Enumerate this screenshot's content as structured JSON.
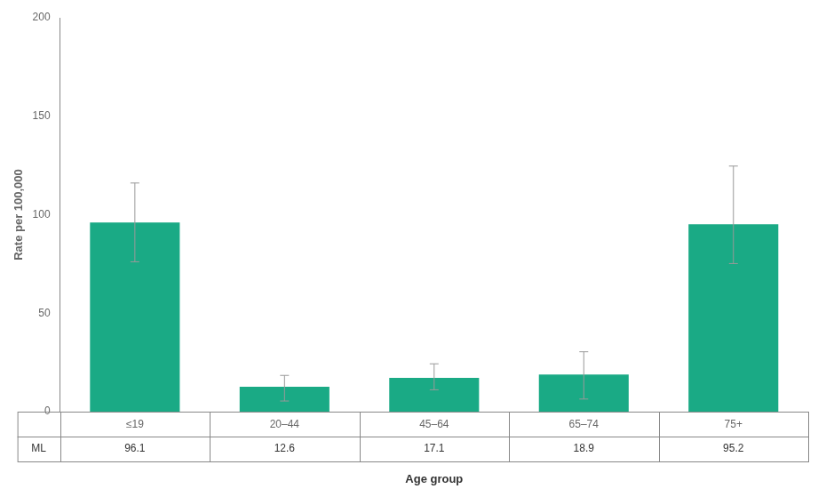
{
  "chart_data": {
    "type": "bar",
    "categories": [
      "≤19",
      "20–44",
      "45–64",
      "65–74",
      "75+"
    ],
    "values": [
      96.1,
      12.6,
      17.1,
      18.9,
      95.2
    ],
    "yerr_upper": [
      20.0,
      5.8,
      7.2,
      11.5,
      29.5
    ],
    "yerr_lower": [
      20.0,
      7.2,
      6.0,
      12.5,
      20.0
    ],
    "color": "#1aaa85",
    "ylabel": "Rate per 100,000",
    "xlabel": "Age group",
    "ylim": [
      0,
      200
    ],
    "yticks": [
      0,
      50,
      100,
      150,
      200
    ],
    "grid": false,
    "table": {
      "label": "ML",
      "values": [
        96.1,
        12.6,
        17.1,
        18.9,
        95.2
      ]
    }
  }
}
